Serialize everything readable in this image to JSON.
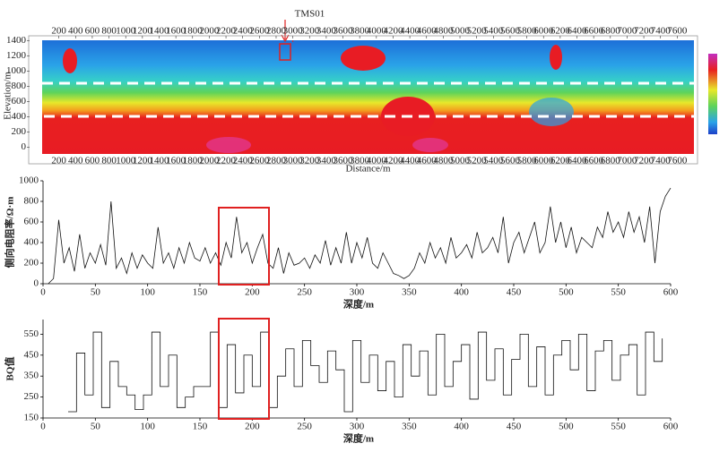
{
  "chart_data": [
    {
      "type": "section",
      "annotation": "TMS01",
      "x_label": "Distance/m",
      "y_label": "Elevation/m",
      "xlim": [
        0,
        7800
      ],
      "ylim": [
        -100,
        1450
      ],
      "xticks": [
        200,
        400,
        600,
        800,
        1000,
        1200,
        1400,
        1600,
        1800,
        2000,
        2200,
        2400,
        2600,
        2800,
        3000,
        3200,
        3400,
        3600,
        3800,
        4000,
        4200,
        4400,
        4600,
        4800,
        5000,
        5200,
        5400,
        5600,
        5800,
        6000,
        6200,
        6400,
        6600,
        6800,
        7000,
        7200,
        7400,
        7600
      ],
      "yticks": [
        0,
        200,
        400,
        600,
        800,
        1000,
        1200,
        1400
      ],
      "marker_x": 3000
    },
    {
      "type": "line",
      "x_label": "深度/m",
      "y_label": "侧向电阻率/Ω·m",
      "color": "#111111",
      "xlim": [
        0,
        600
      ],
      "ylim": [
        0,
        1000
      ],
      "xticks": [
        0,
        50,
        100,
        150,
        200,
        250,
        300,
        350,
        400,
        450,
        500,
        550,
        600
      ],
      "yticks": [
        0,
        200,
        400,
        600,
        800,
        1000
      ],
      "highlight_x": [
        168,
        216
      ],
      "x": [
        5,
        10,
        15,
        20,
        25,
        30,
        35,
        40,
        45,
        50,
        55,
        60,
        65,
        70,
        75,
        80,
        85,
        90,
        95,
        100,
        105,
        110,
        115,
        120,
        125,
        130,
        135,
        140,
        145,
        150,
        155,
        160,
        165,
        170,
        175,
        180,
        185,
        190,
        195,
        200,
        205,
        210,
        215,
        220,
        225,
        230,
        235,
        240,
        245,
        250,
        255,
        260,
        265,
        270,
        275,
        280,
        285,
        290,
        295,
        300,
        305,
        310,
        315,
        320,
        325,
        330,
        335,
        340,
        345,
        350,
        355,
        360,
        365,
        370,
        375,
        380,
        385,
        390,
        395,
        400,
        405,
        410,
        415,
        420,
        425,
        430,
        435,
        440,
        445,
        450,
        455,
        460,
        465,
        470,
        475,
        480,
        485,
        490,
        495,
        500,
        505,
        510,
        515,
        520,
        525,
        530,
        535,
        540,
        545,
        550,
        555,
        560,
        565,
        570,
        575,
        580,
        585,
        590,
        595,
        600
      ],
      "values": [
        0,
        50,
        620,
        200,
        350,
        120,
        480,
        150,
        300,
        200,
        380,
        180,
        800,
        150,
        250,
        100,
        300,
        150,
        280,
        200,
        150,
        550,
        200,
        300,
        150,
        350,
        200,
        400,
        250,
        220,
        350,
        200,
        300,
        180,
        400,
        250,
        650,
        300,
        400,
        200,
        350,
        480,
        200,
        150,
        350,
        100,
        300,
        180,
        200,
        250,
        150,
        280,
        200,
        420,
        180,
        350,
        200,
        500,
        200,
        400,
        250,
        450,
        200,
        150,
        300,
        200,
        100,
        80,
        50,
        80,
        150,
        300,
        200,
        400,
        250,
        350,
        200,
        450,
        250,
        300,
        380,
        250,
        500,
        300,
        350,
        450,
        300,
        650,
        200,
        400,
        500,
        300,
        450,
        600,
        300,
        400,
        750,
        400,
        600,
        350,
        550,
        300,
        450,
        400,
        350,
        550,
        450,
        700,
        500,
        600,
        450,
        700,
        500,
        650,
        400,
        750,
        200,
        700,
        850,
        930
      ]
    },
    {
      "type": "step",
      "x_label": "深度/m",
      "y_label": "BQ值",
      "color": "#111111",
      "xlim": [
        0,
        600
      ],
      "ylim": [
        150,
        620
      ],
      "xticks": [
        0,
        50,
        100,
        150,
        200,
        250,
        300,
        350,
        400,
        450,
        500,
        550,
        600
      ],
      "yticks": [
        150,
        250,
        350,
        450,
        550
      ],
      "highlight_x": [
        168,
        216
      ],
      "x": [
        24,
        32,
        40,
        48,
        56,
        64,
        72,
        80,
        88,
        96,
        104,
        112,
        120,
        128,
        136,
        144,
        152,
        160,
        168,
        176,
        184,
        192,
        200,
        208,
        216,
        224,
        232,
        240,
        248,
        256,
        264,
        272,
        280,
        288,
        296,
        304,
        312,
        320,
        328,
        336,
        344,
        352,
        360,
        368,
        376,
        384,
        392,
        400,
        408,
        416,
        424,
        432,
        440,
        448,
        456,
        464,
        472,
        480,
        488,
        496,
        504,
        512,
        520,
        528,
        536,
        544,
        552,
        560,
        568,
        576,
        584,
        592
      ],
      "values": [
        180,
        460,
        260,
        560,
        200,
        420,
        300,
        260,
        190,
        260,
        560,
        300,
        450,
        200,
        250,
        300,
        300,
        560,
        200,
        500,
        270,
        450,
        300,
        560,
        200,
        350,
        480,
        300,
        520,
        400,
        320,
        470,
        380,
        180,
        520,
        320,
        450,
        280,
        420,
        250,
        500,
        350,
        470,
        260,
        550,
        300,
        420,
        500,
        240,
        560,
        330,
        480,
        260,
        430,
        550,
        300,
        490,
        260,
        450,
        520,
        380,
        550,
        280,
        470,
        520,
        330,
        450,
        500,
        260,
        560,
        420,
        530
      ]
    }
  ]
}
